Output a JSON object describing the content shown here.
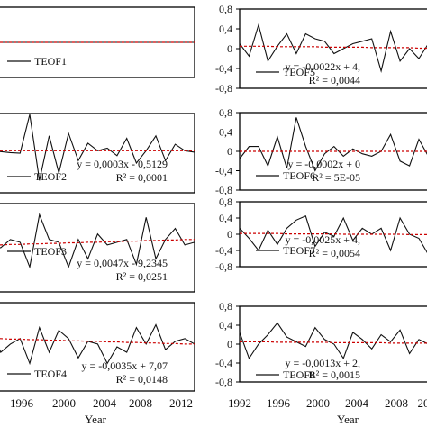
{
  "chart_data": [
    {
      "type": "line",
      "legend": "TEOF1",
      "equation": "",
      "r2": "",
      "x": [
        1992,
        1993,
        1994,
        1995,
        1996,
        1997,
        1998,
        1999,
        2000,
        2001,
        2002,
        2003,
        2004,
        2005,
        2006,
        2007,
        2008,
        2009,
        2010,
        2011,
        2012,
        2013
      ],
      "series": [
        {
          "values": [
            0.001,
            0.001,
            0.001,
            0.001,
            0.001,
            0.001,
            0.001,
            0.001,
            0.001,
            0.001,
            0.001,
            0.001,
            0.001,
            0.001,
            0.001,
            0.001,
            0.001,
            0.001,
            0.001,
            0.001,
            0.001,
            0.001
          ]
        },
        {
          "values": [
            0.001,
            0.001,
            0.001,
            0.001,
            0.001,
            0.001,
            0.001,
            0.001,
            0.001,
            0.001,
            0.001,
            0.001,
            0.001,
            0.001,
            0.001,
            0.001,
            0.001,
            0.001,
            0.001,
            0.001,
            0.001,
            0.001
          ],
          "style": "trend"
        }
      ],
      "ylim": [
        -0.8,
        0.8
      ]
    },
    {
      "type": "line",
      "legend": "TEOF2",
      "equation": "y = 0,0003x - 0,5129",
      "r2": "R² = 0,0001",
      "x": [
        1992,
        1993,
        1994,
        1995,
        1996,
        1997,
        1998,
        1999,
        2000,
        2001,
        2002,
        2003,
        2004,
        2005,
        2006,
        2007,
        2008,
        2009,
        2010,
        2011,
        2012,
        2013
      ],
      "series": [
        {
          "values": [
            0.05,
            0.03,
            0.01,
            0.0,
            0.78,
            -0.55,
            0.35,
            -0.4,
            0.4,
            -0.15,
            0.2,
            0.05,
            0.1,
            -0.05,
            0.3,
            -0.2,
            0.05,
            0.35,
            -0.15,
            0.18,
            0.05,
            0.02
          ]
        },
        {
          "values": [
            0.05,
            0.05,
            0.05,
            0.05,
            0.05,
            0.05,
            0.05,
            0.05,
            0.05,
            0.05,
            0.05,
            0.05,
            0.05,
            0.05,
            0.05,
            0.05,
            0.05,
            0.05,
            0.05,
            0.05,
            0.05,
            0.05
          ],
          "style": "trend"
        }
      ],
      "ylim": [
        -0.8,
        0.8
      ]
    },
    {
      "type": "line",
      "legend": "TEOF3",
      "equation": "y = 0,0047x - 9,2345",
      "r2": "R² = 0,0251",
      "x": [
        1992,
        1993,
        1994,
        1995,
        1996,
        1997,
        1998,
        1999,
        2000,
        2001,
        2002,
        2003,
        2004,
        2005,
        2006,
        2007,
        2008,
        2009,
        2010,
        2011,
        2012,
        2013
      ],
      "series": [
        {
          "values": [
            0.05,
            0.0,
            0.15,
            0.1,
            -0.35,
            0.6,
            0.15,
            0.1,
            -0.35,
            0.15,
            -0.2,
            0.25,
            0.05,
            0.1,
            0.15,
            -0.3,
            0.55,
            -0.2,
            0.15,
            0.35,
            0.05,
            0.1
          ]
        },
        {
          "values": [
            0.05,
            0.05,
            0.06,
            0.06,
            0.07,
            0.07,
            0.08,
            0.08,
            0.09,
            0.09,
            0.1,
            0.1,
            0.11,
            0.11,
            0.12,
            0.12,
            0.13,
            0.13,
            0.14,
            0.14,
            0.15,
            0.15
          ],
          "style": "trend"
        }
      ],
      "ylim": [
        -0.8,
        0.8
      ]
    },
    {
      "type": "line",
      "legend": "TEOF4",
      "equation": "y = -0,0035x + 7,07",
      "r2": "R² = 0,0148",
      "x": [
        1992,
        1993,
        1994,
        1995,
        1996,
        1997,
        1998,
        1999,
        2000,
        2001,
        2002,
        2003,
        2004,
        2005,
        2006,
        2007,
        2008,
        2009,
        2010,
        2011,
        2012,
        2013
      ],
      "series": [
        {
          "values": [
            0.35,
            -0.1,
            0.05,
            0.15,
            -0.3,
            0.35,
            -0.1,
            0.3,
            0.15,
            -0.2,
            0.1,
            0.05,
            -0.3,
            0.0,
            -0.1,
            0.35,
            0.05,
            0.4,
            -0.05,
            0.1,
            0.15,
            0.05
          ]
        },
        {
          "values": [
            0.15,
            0.15,
            0.14,
            0.14,
            0.13,
            0.13,
            0.12,
            0.12,
            0.11,
            0.11,
            0.1,
            0.1,
            0.09,
            0.09,
            0.08,
            0.08,
            0.07,
            0.07,
            0.06,
            0.06,
            0.05,
            0.05
          ],
          "style": "trend"
        }
      ],
      "ylim": [
        -0.8,
        0.8
      ]
    },
    {
      "type": "line",
      "legend": "TEOF5",
      "equation": "y = -0,0022x + 4,",
      "r2": "R² = 0,0044",
      "x": [
        1992,
        1993,
        1994,
        1995,
        1996,
        1997,
        1998,
        1999,
        2000,
        2001,
        2002,
        2003,
        2004,
        2005,
        2006,
        2007,
        2008,
        2009,
        2010,
        2011,
        2012,
        2013
      ],
      "series": [
        {
          "values": [
            0.1,
            -0.15,
            0.48,
            -0.25,
            0.05,
            0.3,
            -0.1,
            0.3,
            0.2,
            0.15,
            -0.1,
            0.0,
            0.1,
            0.15,
            0.2,
            -0.45,
            0.35,
            -0.25,
            0.0,
            -0.2,
            0.1,
            0.05
          ]
        },
        {
          "values": [
            0.05,
            0.05,
            0.05,
            0.05,
            0.04,
            0.04,
            0.04,
            0.04,
            0.04,
            0.03,
            0.03,
            0.03,
            0.03,
            0.03,
            0.02,
            0.02,
            0.02,
            0.02,
            0.02,
            0.01,
            0.01,
            0.01
          ],
          "style": "trend"
        }
      ],
      "ylim": [
        -0.8,
        0.8
      ]
    },
    {
      "type": "line",
      "legend": "TEOF6",
      "equation": "y = -0,0002x + 0",
      "r2": "R² = 5E-05",
      "x": [
        1992,
        1993,
        1994,
        1995,
        1996,
        1997,
        1998,
        1999,
        2000,
        2001,
        2002,
        2003,
        2004,
        2005,
        2006,
        2007,
        2008,
        2009,
        2010,
        2011,
        2012,
        2013
      ],
      "series": [
        {
          "values": [
            -0.15,
            0.1,
            0.1,
            -0.3,
            0.3,
            -0.35,
            0.7,
            0.1,
            -0.4,
            -0.05,
            0.1,
            -0.1,
            0.05,
            -0.05,
            -0.1,
            0.0,
            0.35,
            -0.2,
            -0.3,
            0.25,
            -0.1,
            0.0
          ]
        },
        {
          "values": [
            0.0,
            0.0,
            0.0,
            0.0,
            0.0,
            0.0,
            0.0,
            0.0,
            0.0,
            0.0,
            0.0,
            0.0,
            0.0,
            0.0,
            0.0,
            0.0,
            0.0,
            0.0,
            0.0,
            0.0,
            0.0,
            0.0
          ],
          "style": "trend"
        }
      ],
      "ylim": [
        -0.8,
        0.8
      ]
    },
    {
      "type": "line",
      "legend": "TEOF7",
      "equation": "y = -0,0025x + 4,",
      "r2": "R² = 0,0054",
      "x": [
        1992,
        1993,
        1994,
        1995,
        1996,
        1997,
        1998,
        1999,
        2000,
        2001,
        2002,
        2003,
        2004,
        2005,
        2006,
        2007,
        2008,
        2009,
        2010,
        2011,
        2012,
        2013
      ],
      "series": [
        {
          "values": [
            0.15,
            -0.1,
            -0.4,
            0.1,
            -0.25,
            0.15,
            0.35,
            0.45,
            -0.3,
            0.05,
            -0.05,
            0.4,
            -0.15,
            0.15,
            0.0,
            0.15,
            -0.4,
            0.4,
            0.0,
            -0.1,
            -0.5,
            0.4
          ]
        },
        {
          "values": [
            0.02,
            0.02,
            0.02,
            0.02,
            0.02,
            0.01,
            0.01,
            0.01,
            0.01,
            0.01,
            0.01,
            0.0,
            0.0,
            0.0,
            0.0,
            0.0,
            0.0,
            0.0,
            -0.01,
            -0.01,
            -0.01,
            -0.01
          ],
          "style": "trend"
        }
      ],
      "ylim": [
        -0.8,
        0.8
      ]
    },
    {
      "type": "line",
      "legend": "TEOF8",
      "equation": "y = -0,0013x + 2,",
      "r2": "R² = 0,0015",
      "x": [
        1992,
        1993,
        1994,
        1995,
        1996,
        1997,
        1998,
        1999,
        2000,
        2001,
        2002,
        2003,
        2004,
        2005,
        2006,
        2007,
        2008,
        2009,
        2010,
        2011,
        2012,
        2013
      ],
      "series": [
        {
          "values": [
            0.25,
            -0.3,
            0.0,
            0.2,
            0.45,
            0.15,
            0.05,
            -0.05,
            0.35,
            0.1,
            0.0,
            -0.3,
            0.25,
            0.1,
            -0.1,
            0.2,
            0.05,
            0.3,
            -0.2,
            0.1,
            0.0,
            0.15
          ]
        },
        {
          "values": [
            0.05,
            0.05,
            0.05,
            0.05,
            0.04,
            0.04,
            0.04,
            0.04,
            0.04,
            0.04,
            0.03,
            0.03,
            0.03,
            0.03,
            0.03,
            0.03,
            0.02,
            0.02,
            0.02,
            0.02,
            0.02,
            0.02
          ],
          "style": "trend"
        }
      ],
      "ylim": [
        -0.8,
        0.8
      ]
    }
  ],
  "axis": {
    "y_ticks": [
      0.8,
      0.4,
      0,
      -0.4,
      -0.8
    ],
    "y_tick_labels": [
      "0,8",
      "0,4",
      "0",
      "-0,4",
      "-0,8"
    ],
    "x_ticks_left": [
      "1996",
      "2000",
      "2004",
      "2008",
      "2012"
    ],
    "x_ticks_right": [
      "1992",
      "1996",
      "2000",
      "2004",
      "2008",
      "20"
    ],
    "xlabel_left": "Year",
    "xlabel_right": "Year"
  },
  "colors": {
    "line": "#111111",
    "trend": "#cc0000",
    "frame": "#000000"
  }
}
